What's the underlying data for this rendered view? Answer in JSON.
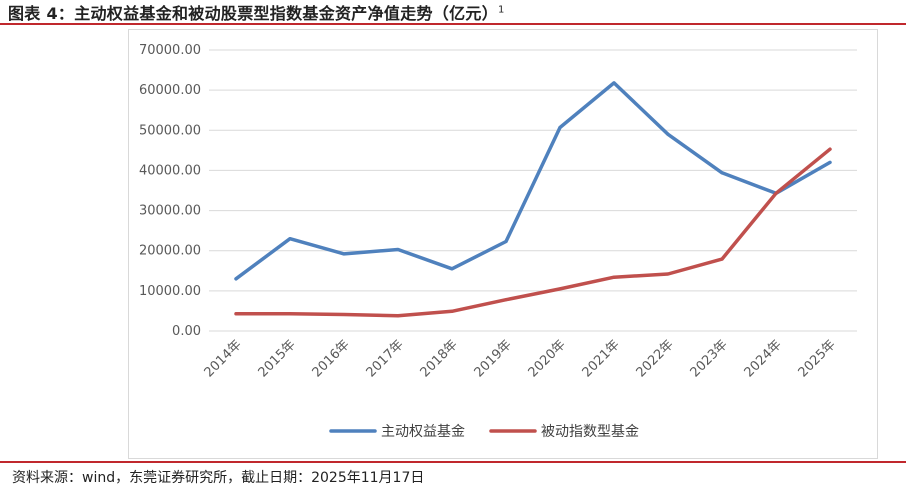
{
  "header": {
    "title": "图表 4：主动权益基金和被动股票型指数基金资产净值走势（亿元）",
    "footnote_mark": "1"
  },
  "footer": {
    "source": "资料来源：wind，东莞证券研究所，截止日期：2025年11月17日"
  },
  "colors": {
    "accent_rule": "#c0282d",
    "series_active": "#4f81bd",
    "series_passive": "#c0504d",
    "grid": "#d9d9d9"
  },
  "chart_data": {
    "type": "line",
    "title": "",
    "xlabel": "",
    "ylabel": "",
    "categories": [
      "2014年",
      "2015年",
      "2016年",
      "2017年",
      "2018年",
      "2019年",
      "2020年",
      "2021年",
      "2022年",
      "2023年",
      "2024年",
      "2025年"
    ],
    "ylim": [
      0,
      70000
    ],
    "yticks": [
      "0.00",
      "10000.00",
      "20000.00",
      "30000.00",
      "40000.00",
      "50000.00",
      "60000.00",
      "70000.00"
    ],
    "grid": true,
    "legend_position": "bottom",
    "series": [
      {
        "name": "主动权益基金",
        "color": "#4f81bd",
        "values": [
          13000,
          23000,
          19200,
          20300,
          15500,
          22300,
          50700,
          61800,
          49000,
          39400,
          34300,
          42000
        ]
      },
      {
        "name": "被动指数型基金",
        "color": "#c0504d",
        "values": [
          4300,
          4300,
          4100,
          3800,
          4900,
          7800,
          10500,
          13400,
          14200,
          17900,
          34300,
          45300
        ]
      }
    ]
  }
}
